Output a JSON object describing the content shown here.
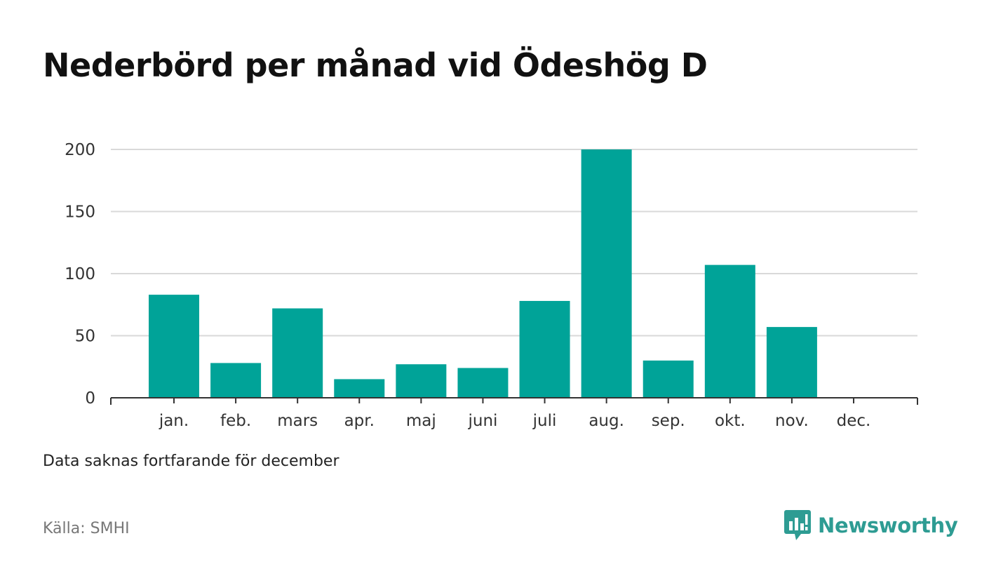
{
  "title": "Nederbörd per månad vid Ödeshög D",
  "note": "Data saknas fortfarande för december",
  "source": "Källa: SMHI",
  "brand": {
    "name": "Newsworthy",
    "icon": "newsworthy-logo-icon"
  },
  "colors": {
    "bar": "#00a398",
    "grid": "#d9d9d9",
    "axis": "#333333",
    "brand": "#2e9c93"
  },
  "chart_data": {
    "type": "bar",
    "categories": [
      "jan.",
      "feb.",
      "mars",
      "apr.",
      "maj",
      "juni",
      "juli",
      "aug.",
      "sep.",
      "okt.",
      "nov.",
      "dec."
    ],
    "values": [
      83,
      28,
      72,
      15,
      27,
      24,
      78,
      200,
      30,
      107,
      57,
      null
    ],
    "yticks": [
      0,
      50,
      100,
      150,
      200
    ],
    "ylim": [
      0,
      200
    ],
    "grid": true,
    "title": "Nederbörd per månad vid Ödeshög D",
    "xlabel": "",
    "ylabel": ""
  }
}
